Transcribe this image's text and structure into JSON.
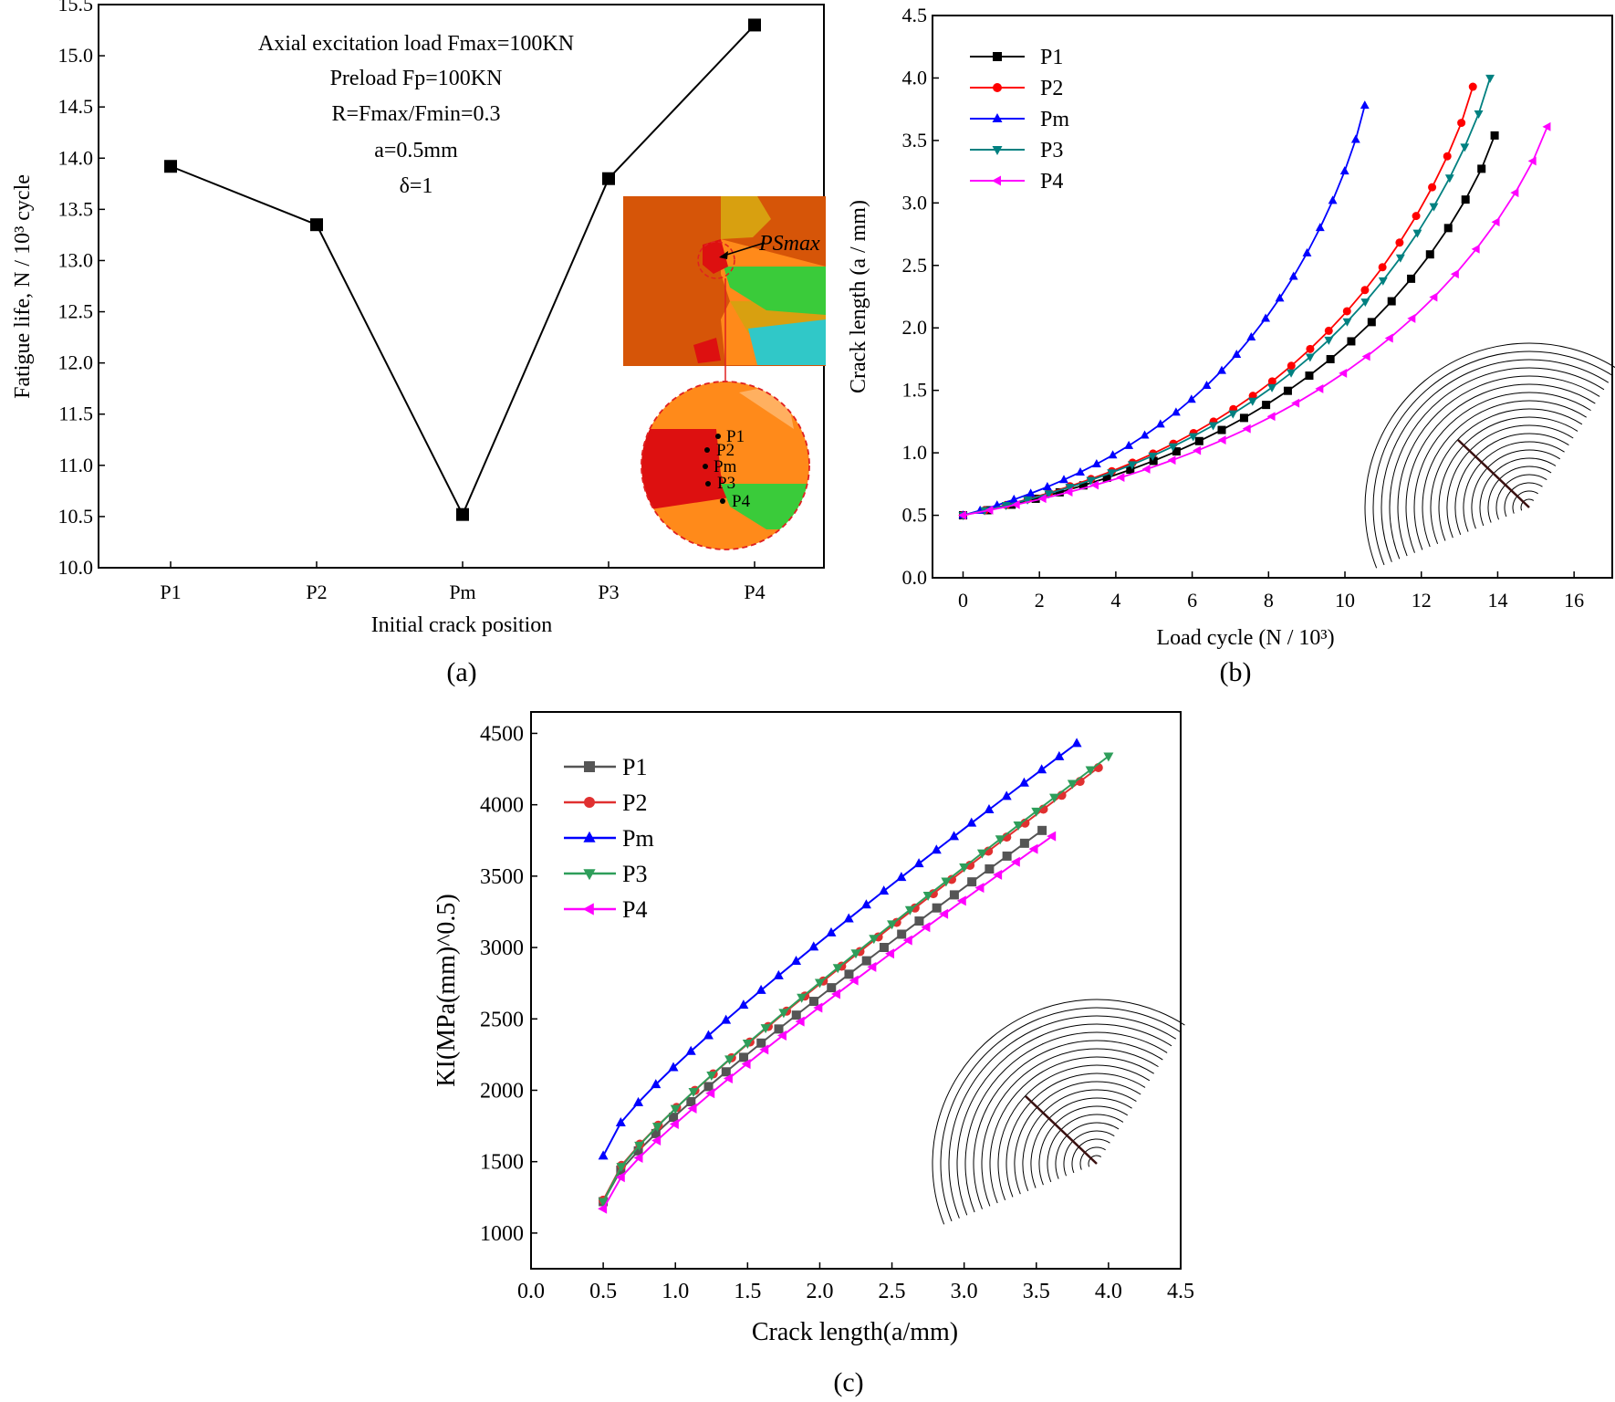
{
  "chart_data": [
    {
      "id": "a",
      "type": "line",
      "panel_label": "(a)",
      "categories": [
        "P1",
        "P2",
        "Pm",
        "P3",
        "P4"
      ],
      "values": [
        13.92,
        13.35,
        10.52,
        13.8,
        15.3
      ],
      "xlabel": "Initial crack position",
      "ylabel": "Fatigue life, N / 10³ cycle",
      "ylim": [
        10.0,
        15.5
      ],
      "yticks": [
        "10.0",
        "10.5",
        "11.0",
        "11.5",
        "12.0",
        "12.5",
        "13.0",
        "13.5",
        "14.0",
        "14.5",
        "15.0",
        "15.5"
      ],
      "annotations": [
        "Axial excitation load  Fmax=100KN",
        "Preload Fp=100KN",
        "R=Fmax/Fmin=0.3",
        "a=0.5mm",
        "δ=1"
      ],
      "inset": {
        "label_smax": "PSmax",
        "points": [
          "P1",
          "P2",
          "Pm",
          "P3",
          "P4"
        ]
      },
      "color": "#000000"
    },
    {
      "id": "b",
      "type": "line",
      "panel_label": "(b)",
      "xlabel": "Load cycle (N / 10³)",
      "ylabel": "Crack length (a / mm)",
      "xlim": [
        -0.8,
        17
      ],
      "ylim": [
        0,
        4.5
      ],
      "xticks": [
        "0",
        "2",
        "4",
        "6",
        "8",
        "10",
        "12",
        "14",
        "16"
      ],
      "yticks": [
        "0.0",
        "0.5",
        "1.0",
        "1.5",
        "2.0",
        "2.5",
        "3.0",
        "3.5",
        "4.0",
        "4.5"
      ],
      "legend": "top-left",
      "series": [
        {
          "name": "P1",
          "color": "#000000",
          "marker": "square",
          "end_x": 13.92,
          "end_y": 3.54,
          "n": 26
        },
        {
          "name": "P2",
          "color": "#ff0000",
          "marker": "circle",
          "end_x": 13.35,
          "end_y": 3.93,
          "n": 28
        },
        {
          "name": "Pm",
          "color": "#0000ff",
          "marker": "triangle-up",
          "end_x": 10.52,
          "end_y": 3.78,
          "n": 28
        },
        {
          "name": "P3",
          "color": "#008080",
          "marker": "triangle-down",
          "end_x": 13.8,
          "end_y": 4.0,
          "n": 29
        },
        {
          "name": "P4",
          "color": "#ff00ff",
          "marker": "triangle-left",
          "end_x": 15.3,
          "end_y": 3.61,
          "n": 26
        }
      ]
    },
    {
      "id": "c",
      "type": "line",
      "panel_label": "(c)",
      "xlabel": "Crack length(a/mm)",
      "ylabel": "KI(MPa(mm)^0.5)",
      "xlim": [
        0,
        4.5
      ],
      "ylim": [
        750,
        4650
      ],
      "xticks": [
        "0.0",
        "0.5",
        "1.0",
        "1.5",
        "2.0",
        "2.5",
        "3.0",
        "3.5",
        "4.0",
        "4.5"
      ],
      "yticks": [
        "1000",
        "1500",
        "2000",
        "2500",
        "3000",
        "3500",
        "4000",
        "4500"
      ],
      "legend": "top-left",
      "series": [
        {
          "name": "P1",
          "color": "#555555",
          "marker": "square",
          "end_a": 3.54,
          "start_k": 1220,
          "end_k": 3820,
          "n": 26
        },
        {
          "name": "P2",
          "color": "#e03030",
          "marker": "circle",
          "end_a": 3.93,
          "start_k": 1230,
          "end_k": 4260,
          "n": 28
        },
        {
          "name": "Pm",
          "color": "#0000ff",
          "marker": "triangle-up",
          "end_a": 3.78,
          "start_k": 1540,
          "end_k": 4430,
          "n": 28
        },
        {
          "name": "P3",
          "color": "#2e9e5a",
          "marker": "triangle-down",
          "end_a": 4.0,
          "start_k": 1220,
          "end_k": 4340,
          "n": 29
        },
        {
          "name": "P4",
          "color": "#ff00ff",
          "marker": "triangle-left",
          "end_a": 3.61,
          "start_k": 1170,
          "end_k": 3780,
          "n": 26
        }
      ]
    }
  ]
}
